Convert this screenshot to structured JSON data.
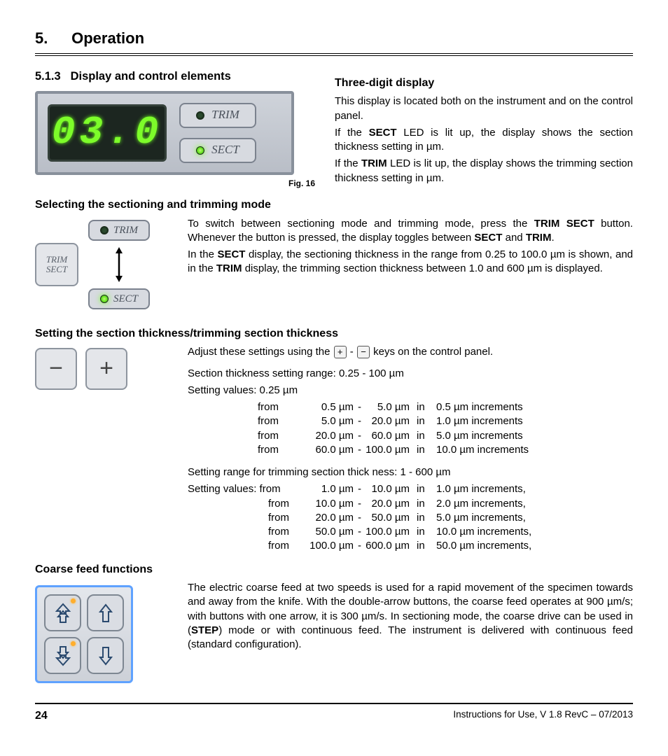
{
  "chapter": {
    "num": "5.",
    "title": "Operation"
  },
  "sec513": {
    "num": "5.1.3",
    "title": "Display and control elements"
  },
  "fig16": {
    "caption": "Fig. 16",
    "digits": "03.0",
    "trim_label": "TRIM",
    "sect_label": "SECT"
  },
  "threeDigit": {
    "heading": "Three-digit display",
    "p1": "This display is located both on the instrument and on the control panel.",
    "p2a": "If the ",
    "p2b": "SECT",
    "p2c": " LED is lit up, the display shows the section thickness setting in µm.",
    "p3a": "If the ",
    "p3b": "TRIM",
    "p3c": " LED is lit up, the display shows the trimming section thickness setting in µm."
  },
  "selMode": {
    "heading": "Selecting the sectioning and trimming mode",
    "key_line1": "TRIM",
    "key_line2": "SECT",
    "trim_label": "TRIM",
    "sect_label": "SECT",
    "p1a": "To switch between sectioning mode and trimming mode, press the ",
    "p1b": "TRIM SECT",
    "p1c": " button. Whenever the button is pressed, the display toggles between ",
    "p1d": "SECT",
    "p1e": " and ",
    "p1f": "TRIM",
    "p1g": ".",
    "p2a": "In the ",
    "p2b": "SECT",
    "p2c": " display, the sectioning thickness in the range from 0.25 to 100.0 µm is shown, and in the ",
    "p2d": "TRIM",
    "p2e": " display, the trimming section thickness between 1.0 and 600 µm is displayed."
  },
  "setThick": {
    "heading": "Setting the section thickness/trimming section thickness",
    "minus": "−",
    "plus": "+",
    "key_plus": "+",
    "key_minus": "−",
    "intro_a": "Adjust these settings using the ",
    "intro_b": " - ",
    "intro_c": " keys on the control panel.",
    "sect_range_line": "Section thickness setting range: 0.25 - 100 µm",
    "sect_values_line": "Setting values: 0.25 µm",
    "sect_rows": [
      {
        "from": "from",
        "lo": "0.5 µm",
        "dash": "-",
        "hi": "5.0 µm",
        "in": "in",
        "inc": "0.5 µm increments"
      },
      {
        "from": "from",
        "lo": "5.0 µm",
        "dash": "-",
        "hi": "20.0 µm",
        "in": "in",
        "inc": "1.0 µm increments"
      },
      {
        "from": "from",
        "lo": "20.0 µm",
        "dash": "-",
        "hi": "60.0 µm",
        "in": "in",
        "inc": "5.0 µm increments"
      },
      {
        "from": "from",
        "lo": "60.0 µm",
        "dash": "-",
        "hi": "100.0 µm",
        "in": "in",
        "inc": "10.0 µm increments"
      }
    ],
    "trim_range_line": "Setting range for trimming section thick ness: 1 - 600 µm",
    "trim_values_prefix": "Setting values: from",
    "trim_rows": [
      {
        "from": "",
        "lo": "1.0 µm",
        "dash": "-",
        "hi": "10.0 µm",
        "in": "in",
        "inc": "1.0 µm increments,"
      },
      {
        "from": "from",
        "lo": "10.0 µm",
        "dash": "-",
        "hi": "20.0 µm",
        "in": "in",
        "inc": "2.0 µm increments,"
      },
      {
        "from": "from",
        "lo": "20.0 µm",
        "dash": "-",
        "hi": "50.0 µm",
        "in": "in",
        "inc": "5.0 µm increments,"
      },
      {
        "from": "from",
        "lo": "50.0 µm",
        "dash": "-",
        "hi": "100.0 µm",
        "in": "in",
        "inc": "10.0 µm increments,"
      },
      {
        "from": "from",
        "lo": "100.0 µm",
        "dash": "-",
        "hi": "600.0 µm",
        "in": "in",
        "inc": "50.0 µm increments,"
      }
    ]
  },
  "coarse": {
    "heading": "Coarse feed functions",
    "p_a": "The electric coarse feed at two speeds is used for a rapid movement of the specimen towards and away from the knife. With the double-arrow buttons, the coarse feed operates at 900 µm/s; with buttons with one arrow, it is 300 µm/s. In sectioning mode, the coarse drive can be used in (",
    "p_b": "STEP",
    "p_c": ") mode or with continuous feed. The instrument is delivered with continuous feed (standard configuration)."
  },
  "footer": {
    "page": "24",
    "doc": "Instructions for Use, V 1.8 RevC – 07/2013"
  }
}
